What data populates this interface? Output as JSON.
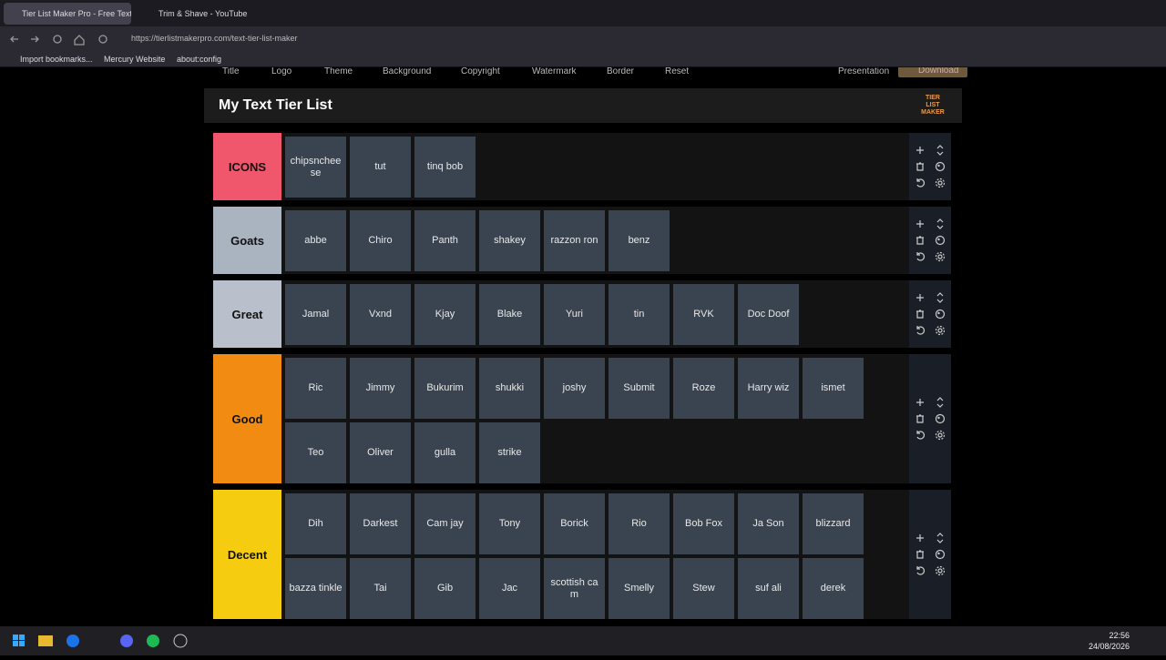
{
  "browser": {
    "tabs": [
      "Tier List Maker Pro - Free Text T",
      "Trim & Shave - YouTube"
    ],
    "url": "https://tierlistmakerpro.com/text-tier-list-maker",
    "bookmarks": [
      "Import bookmarks...",
      "Mercury Website",
      "about:config"
    ]
  },
  "toolbar": {
    "left": [
      "Title",
      "Logo",
      "Theme",
      "Background",
      "Copyright",
      "Watermark",
      "Border",
      "Reset"
    ],
    "right": [
      "Presentation",
      "Download"
    ]
  },
  "tier_list": {
    "title": "My Text Tier List",
    "logo": "TIER LIST MAKER",
    "tiers": [
      {
        "label": "ICONS",
        "color": "#f0566c",
        "items": [
          "chipsncheese",
          "tut",
          "tinq bob"
        ]
      },
      {
        "label": "Goats",
        "color": "#aab3c0",
        "items": [
          "abbe",
          "Chiro",
          "Panth",
          "shakey",
          "razzon ron",
          "benz"
        ]
      },
      {
        "label": "Great",
        "color": "#b9c0cb",
        "items": [
          "Jamal",
          "Vxnd",
          "Kjay",
          "Blake",
          "Yuri",
          "tin",
          "RVK",
          "Doc Doof"
        ]
      },
      {
        "label": "Good",
        "color": "#f28b12",
        "items": [
          "Ric",
          "Jimmy",
          "Bukurim",
          "shukki",
          "joshy",
          "Submit",
          "Roze",
          "Harry wiz",
          "ismet",
          "Teo",
          "Oliver",
          "gulla",
          "strike"
        ]
      },
      {
        "label": "Decent",
        "color": "#f5cc0f",
        "items": [
          "Dih",
          "Darkest",
          "Cam jay",
          "Tony",
          "Borick",
          "Rio",
          "Bob Fox",
          "Ja Son",
          "blizzard",
          "bazza tinkle",
          "Tai",
          "Gib",
          "Jac",
          "scottish cam",
          "Smelly",
          "Stew",
          "suf ali",
          "derek"
        ]
      }
    ]
  },
  "taskbar": {
    "time": "22:56",
    "date": "24/08/2026"
  }
}
